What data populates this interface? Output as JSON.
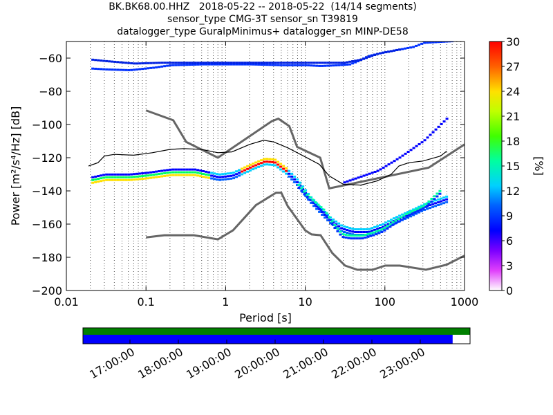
{
  "title_lines": [
    "BK.BK68.00.HHZ   2018-05-22 -- 2018-05-22  (14/14 segments)",
    "sensor_type CMG-3T sensor_sn T39819",
    "datalogger_type GuralpMinimus+ datalogger_sn MINP-DE58"
  ],
  "chart_data": {
    "type": "heatmap",
    "x_scale": "log",
    "xlim": [
      0.01,
      1000
    ],
    "ylim": [
      -200,
      -50
    ],
    "x_ticks": [
      0.01,
      0.1,
      1,
      10,
      100,
      1000
    ],
    "x_tick_labels": [
      "0.01",
      "0.1",
      "1",
      "10",
      "100",
      "1000"
    ],
    "y_ticks": [
      -200,
      -180,
      -160,
      -140,
      -120,
      -100,
      -80,
      -60
    ],
    "y_tick_labels": [
      "−200",
      "−180",
      "−160",
      "−140",
      "−120",
      "−100",
      "−80",
      "−60"
    ],
    "xlabel": "Period [s]",
    "ylabel": "Power [m²/s⁴/Hz] [dB]",
    "colorbar": {
      "label": "[%]",
      "range": [
        0,
        30
      ],
      "ticks": [
        0,
        3,
        6,
        9,
        12,
        15,
        18,
        21,
        24,
        27,
        30
      ]
    },
    "noise_models": {
      "high": [
        [
          0.1,
          -91.5
        ],
        [
          0.22,
          -97.4
        ],
        [
          0.32,
          -110.5
        ],
        [
          0.8,
          -120
        ],
        [
          3.8,
          -98
        ],
        [
          4.6,
          -96.5
        ],
        [
          6.3,
          -101
        ],
        [
          7.9,
          -113.5
        ],
        [
          15.4,
          -120
        ],
        [
          20,
          -138.5
        ],
        [
          354.8,
          -126
        ],
        [
          1000,
          -112
        ]
      ],
      "low": [
        [
          0.1,
          -168
        ],
        [
          0.17,
          -166.7
        ],
        [
          0.4,
          -166.7
        ],
        [
          0.8,
          -169.2
        ],
        [
          1.24,
          -163.7
        ],
        [
          2.4,
          -148.6
        ],
        [
          4.3,
          -141.1
        ],
        [
          5.0,
          -141.1
        ],
        [
          6.0,
          -149
        ],
        [
          10,
          -163.8
        ],
        [
          12,
          -166.2
        ],
        [
          15.6,
          -166.7
        ],
        [
          21.9,
          -177.5
        ],
        [
          31.6,
          -185
        ],
        [
          45,
          -187.5
        ],
        [
          70,
          -187.5
        ],
        [
          101,
          -185
        ],
        [
          154,
          -185
        ],
        [
          328,
          -187.5
        ],
        [
          600,
          -184.4
        ],
        [
          1000,
          -179
        ]
      ]
    },
    "mean_curve": [
      [
        0.019,
        -125
      ],
      [
        0.025,
        -123
      ],
      [
        0.03,
        -119
      ],
      [
        0.04,
        -118
      ],
      [
        0.07,
        -118.5
      ],
      [
        0.12,
        -117
      ],
      [
        0.2,
        -115
      ],
      [
        0.3,
        -114.5
      ],
      [
        0.5,
        -115
      ],
      [
        0.8,
        -117
      ],
      [
        1.2,
        -116.5
      ],
      [
        2,
        -112
      ],
      [
        3,
        -109.5
      ],
      [
        4,
        -110.5
      ],
      [
        6,
        -114
      ],
      [
        10,
        -119.5
      ],
      [
        15,
        -124
      ],
      [
        20,
        -131
      ],
      [
        30,
        -136
      ],
      [
        50,
        -136.5
      ],
      [
        80,
        -134
      ],
      [
        120,
        -130
      ],
      [
        150,
        -125
      ],
      [
        200,
        -123
      ],
      [
        300,
        -122
      ],
      [
        500,
        -119
      ],
      [
        600,
        -116
      ]
    ],
    "mode_curve": [
      [
        3.2,
        -121
      ],
      [
        4.5,
        -124
      ],
      [
        6,
        -131
      ],
      [
        8,
        -137.5
      ],
      [
        10,
        -143
      ],
      [
        13,
        -148
      ],
      [
        17,
        -153
      ],
      [
        22,
        -161
      ],
      [
        28,
        -167
      ],
      [
        35,
        -168
      ],
      [
        50,
        -168
      ],
      [
        70,
        -166
      ],
      [
        90,
        -164
      ],
      [
        120,
        -160
      ],
      [
        180,
        -155
      ],
      [
        300,
        -150
      ],
      [
        500,
        -140
      ]
    ],
    "upper_band": [
      [
        0.019,
        -63
      ],
      [
        0.02,
        -66.5
      ],
      [
        0.03,
        -67
      ],
      [
        0.06,
        -67.5
      ],
      [
        0.12,
        -66
      ],
      [
        0.2,
        -64.5
      ],
      [
        0.5,
        -64
      ],
      [
        1,
        -64
      ],
      [
        2,
        -64
      ],
      [
        5,
        -64.5
      ],
      [
        10,
        -64.5
      ],
      [
        15,
        -65
      ],
      [
        25,
        -64.5
      ],
      [
        35,
        -64
      ],
      [
        45,
        -62
      ],
      [
        60,
        -59
      ],
      [
        90,
        -57
      ],
      [
        150,
        -55
      ],
      [
        220,
        -53.5
      ],
      [
        300,
        -51
      ],
      [
        700,
        -50
      ]
    ],
    "upper_band_2": [
      [
        0.019,
        -61
      ],
      [
        0.03,
        -62
      ],
      [
        0.07,
        -63.5
      ],
      [
        0.15,
        -63
      ],
      [
        0.4,
        -63
      ],
      [
        2,
        -63
      ],
      [
        10,
        -63
      ],
      [
        30,
        -63
      ],
      [
        50,
        -61
      ],
      [
        80,
        -57.5
      ],
      [
        150,
        -55
      ]
    ]
  },
  "time_axis": {
    "tick_labels": [
      "17:00:00",
      "18:00:00",
      "19:00:00",
      "20:00:00",
      "21:00:00",
      "22:00:00",
      "23:00:00"
    ],
    "coverage_fraction": 0.955
  },
  "colors": {
    "noise_model": "#666666",
    "mean": "#000000",
    "coverage_green": "#008000",
    "coverage_blue": "#0000ff"
  }
}
